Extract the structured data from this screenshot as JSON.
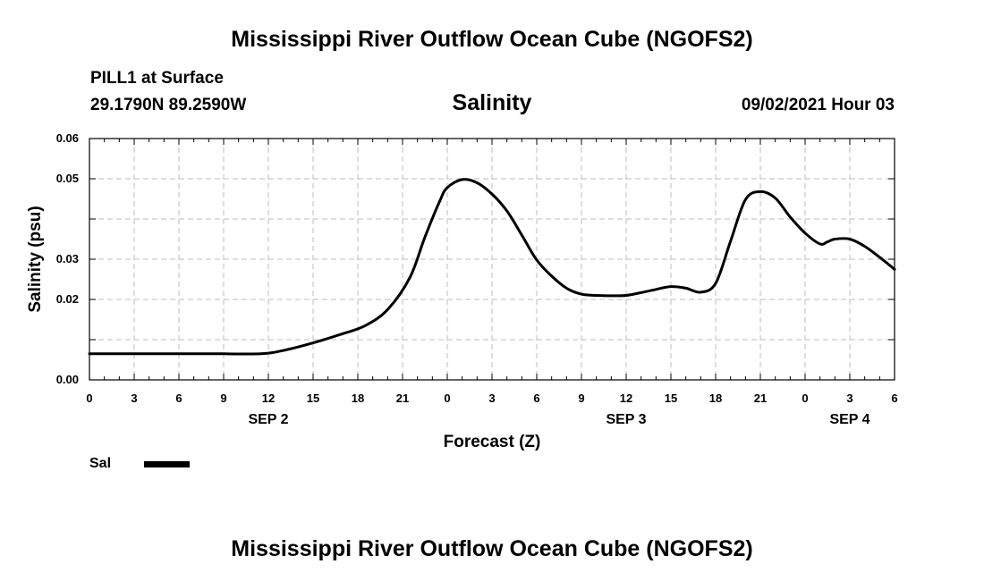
{
  "header": {
    "title": "Mississippi River Outflow Ocean Cube (NGOFS2)",
    "station": "PILL1 at Surface",
    "coords": "29.1790N  89.2590W",
    "variable": "Salinity",
    "datetime": "09/02/2021 Hour 03"
  },
  "footer": {
    "title": "Mississippi River Outflow Ocean Cube (NGOFS2)"
  },
  "legend": {
    "label": "Sal",
    "color": "#000000"
  },
  "chart_data": {
    "type": "line",
    "title": "Salinity",
    "xlabel": "Forecast (Z)",
    "ylabel": "Salinity (psu)",
    "xlim": [
      0,
      54
    ],
    "ylim": [
      0,
      0.06
    ],
    "grid": true,
    "x_ticks": [
      0,
      3,
      6,
      9,
      12,
      15,
      18,
      21,
      24,
      27,
      30,
      33,
      36,
      39,
      42,
      45,
      48,
      51,
      54
    ],
    "x_tick_labels": [
      "0",
      "3",
      "6",
      "9",
      "12",
      "15",
      "18",
      "21",
      "0",
      "3",
      "6",
      "9",
      "12",
      "15",
      "18",
      "21",
      "0",
      "3",
      "6"
    ],
    "y_ticks": [
      0,
      0.01,
      0.02,
      0.03,
      0.04,
      0.05,
      0.06
    ],
    "y_tick_labels": [
      "0.00",
      "",
      "0.02",
      "0.03",
      "",
      "0.05",
      "0.06"
    ],
    "day_labels": [
      {
        "x": 12,
        "label": "SEP 2"
      },
      {
        "x": 36,
        "label": "SEP 3"
      },
      {
        "x": 51,
        "label": "SEP 4"
      }
    ],
    "series": [
      {
        "name": "Sal",
        "x": [
          0,
          3,
          6,
          9,
          11.5,
          13,
          15,
          17,
          18.5,
          20,
          21.5,
          22.5,
          23.5,
          24,
          25,
          26,
          27,
          28,
          29,
          30,
          31,
          32,
          33,
          34,
          35,
          36,
          37,
          38,
          39,
          40,
          41,
          42,
          43,
          44,
          45,
          46,
          47,
          48,
          49,
          49.5,
          50,
          51,
          52,
          53,
          54
        ],
        "values": [
          0.0065,
          0.0065,
          0.0065,
          0.0065,
          0.0065,
          0.0073,
          0.0092,
          0.0115,
          0.0135,
          0.0175,
          0.0255,
          0.0355,
          0.0445,
          0.0478,
          0.0498,
          0.049,
          0.0462,
          0.042,
          0.036,
          0.0298,
          0.0258,
          0.0228,
          0.0213,
          0.021,
          0.0209,
          0.021,
          0.0217,
          0.0225,
          0.0232,
          0.0228,
          0.0218,
          0.024,
          0.0345,
          0.0448,
          0.0468,
          0.0452,
          0.0405,
          0.0365,
          0.0338,
          0.0343,
          0.035,
          0.035,
          0.0332,
          0.0305,
          0.0275
        ]
      }
    ]
  }
}
